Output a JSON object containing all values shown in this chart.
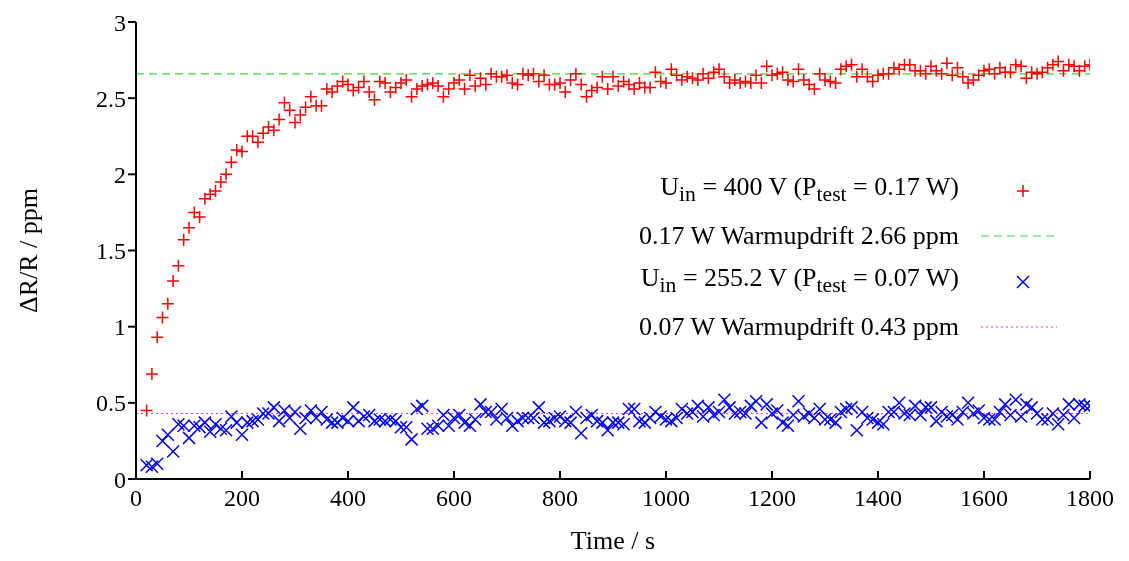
{
  "chart_data": {
    "type": "scatter",
    "xlabel": "Time / s",
    "ylabel": "ΔR/R / ppm",
    "x": [
      20,
      30,
      40,
      50,
      60,
      70,
      80,
      90,
      100,
      110,
      120,
      130,
      140,
      150,
      160,
      170,
      180,
      190,
      200,
      210,
      220,
      230,
      240,
      250,
      260,
      270,
      280,
      290,
      300,
      310,
      320,
      330,
      340,
      350,
      360,
      370,
      380,
      390,
      400,
      410,
      420,
      430,
      440,
      450,
      460,
      470,
      480,
      490,
      500,
      510,
      520,
      530,
      540,
      550,
      560,
      570,
      580,
      590,
      600,
      610,
      620,
      630,
      640,
      650,
      660,
      670,
      680,
      690,
      700,
      710,
      720,
      730,
      740,
      750,
      760,
      770,
      780,
      790,
      800,
      810,
      820,
      830,
      840,
      850,
      860,
      870,
      880,
      890,
      900,
      910,
      920,
      930,
      940,
      950,
      960,
      970,
      980,
      990,
      1000,
      1010,
      1020,
      1030,
      1040,
      1050,
      1060,
      1070,
      1080,
      1090,
      1100,
      1110,
      1120,
      1130,
      1140,
      1150,
      1160,
      1170,
      1180,
      1190,
      1200,
      1210,
      1220,
      1230,
      1240,
      1250,
      1260,
      1270,
      1280,
      1290,
      1300,
      1310,
      1320,
      1330,
      1340,
      1350,
      1360,
      1370,
      1380,
      1390,
      1400,
      1410,
      1420,
      1430,
      1440,
      1450,
      1460,
      1470,
      1480,
      1490,
      1500,
      1510,
      1520,
      1530,
      1540,
      1550,
      1560,
      1570,
      1580,
      1590,
      1600,
      1610,
      1620,
      1630,
      1640,
      1650,
      1660,
      1670,
      1680,
      1690,
      1700,
      1710,
      1720,
      1730,
      1740,
      1750,
      1760,
      1770,
      1780,
      1790,
      1800
    ],
    "series": [
      {
        "name": "U$_{in}$ = 400 V (P$_{test}$ = 0.17 W)",
        "color": "#ff0000",
        "marker": "plus",
        "values": [
          0.45,
          0.69,
          0.93,
          1.06,
          1.15,
          1.3,
          1.4,
          1.57,
          1.65,
          1.75,
          1.72,
          1.84,
          1.87,
          1.89,
          1.95,
          2.0,
          2.08,
          2.16,
          2.15,
          2.25,
          2.25,
          2.21,
          2.27,
          2.31,
          2.29,
          2.36,
          2.47,
          2.42,
          2.34,
          2.39,
          2.44,
          2.51,
          2.45,
          2.45,
          2.56,
          2.54,
          2.58,
          2.61,
          2.59,
          2.55,
          2.57,
          2.61,
          2.54,
          2.49,
          2.61,
          2.6,
          2.54,
          2.57,
          2.6,
          2.62,
          2.51,
          2.56,
          2.58,
          2.59,
          2.6,
          2.58,
          2.51,
          2.56,
          2.6,
          2.62,
          2.56,
          2.65,
          2.58,
          2.63,
          2.59,
          2.66,
          2.64,
          2.64,
          2.65,
          2.6,
          2.59,
          2.66,
          2.65,
          2.66,
          2.61,
          2.65,
          2.59,
          2.59,
          2.6,
          2.54,
          2.62,
          2.66,
          2.59,
          2.51,
          2.55,
          2.57,
          2.64,
          2.56,
          2.64,
          2.58,
          2.61,
          2.59,
          2.56,
          2.6,
          2.57,
          2.57,
          2.67,
          2.61,
          2.6,
          2.69,
          2.65,
          2.62,
          2.64,
          2.63,
          2.62,
          2.66,
          2.63,
          2.67,
          2.69,
          2.64,
          2.6,
          2.62,
          2.6,
          2.61,
          2.6,
          2.65,
          2.6,
          2.71,
          2.65,
          2.66,
          2.67,
          2.62,
          2.61,
          2.69,
          2.62,
          2.59,
          2.56,
          2.66,
          2.62,
          2.61,
          2.6,
          2.69,
          2.71,
          2.72,
          2.64,
          2.69,
          2.64,
          2.61,
          2.65,
          2.66,
          2.66,
          2.7,
          2.69,
          2.72,
          2.72,
          2.68,
          2.68,
          2.66,
          2.71,
          2.68,
          2.66,
          2.73,
          2.65,
          2.7,
          2.64,
          2.6,
          2.62,
          2.65,
          2.68,
          2.69,
          2.66,
          2.7,
          2.67,
          2.67,
          2.72,
          2.71,
          2.63,
          2.67,
          2.66,
          2.67,
          2.7,
          2.72,
          2.74,
          2.68,
          2.72,
          2.71,
          2.68,
          2.71,
          2.72
        ]
      },
      {
        "name": "U$_{in}$ = 255.2 V (P$_{test}$ = 0.07 W)",
        "color": "#0000ff",
        "marker": "cross",
        "values": [
          0.09,
          0.08,
          0.1,
          0.25,
          0.29,
          0.18,
          0.36,
          0.35,
          0.27,
          0.35,
          0.34,
          0.37,
          0.31,
          0.36,
          0.33,
          0.32,
          0.41,
          0.37,
          0.29,
          0.37,
          0.38,
          0.39,
          0.43,
          0.43,
          0.47,
          0.38,
          0.45,
          0.4,
          0.44,
          0.33,
          0.4,
          0.45,
          0.4,
          0.44,
          0.39,
          0.37,
          0.37,
          0.4,
          0.38,
          0.47,
          0.38,
          0.41,
          0.42,
          0.38,
          0.39,
          0.38,
          0.39,
          0.38,
          0.34,
          0.34,
          0.26,
          0.46,
          0.48,
          0.33,
          0.33,
          0.35,
          0.42,
          0.35,
          0.4,
          0.42,
          0.37,
          0.35,
          0.39,
          0.49,
          0.44,
          0.44,
          0.39,
          0.46,
          0.4,
          0.35,
          0.38,
          0.4,
          0.4,
          0.4,
          0.47,
          0.37,
          0.38,
          0.4,
          0.41,
          0.38,
          0.37,
          0.44,
          0.3,
          0.4,
          0.42,
          0.38,
          0.37,
          0.32,
          0.37,
          0.37,
          0.36,
          0.46,
          0.46,
          0.38,
          0.37,
          0.4,
          0.44,
          0.41,
          0.39,
          0.38,
          0.4,
          0.46,
          0.43,
          0.44,
          0.48,
          0.41,
          0.47,
          0.42,
          0.44,
          0.52,
          0.47,
          0.43,
          0.44,
          0.43,
          0.48,
          0.51,
          0.37,
          0.49,
          0.43,
          0.45,
          0.37,
          0.35,
          0.42,
          0.51,
          0.41,
          0.43,
          0.4,
          0.46,
          0.39,
          0.39,
          0.37,
          0.44,
          0.46,
          0.47,
          0.32,
          0.44,
          0.4,
          0.39,
          0.37,
          0.36,
          0.44,
          0.44,
          0.5,
          0.43,
          0.42,
          0.48,
          0.42,
          0.47,
          0.47,
          0.38,
          0.44,
          0.41,
          0.42,
          0.39,
          0.44,
          0.5,
          0.43,
          0.45,
          0.4,
          0.39,
          0.39,
          0.44,
          0.49,
          0.42,
          0.52,
          0.41,
          0.49,
          0.47,
          0.43,
          0.39,
          0.39,
          0.43,
          0.36,
          0.42,
          0.49,
          0.4,
          0.49,
          0.48,
          0.48
        ]
      }
    ],
    "ref_lines": [
      {
        "axis": "y",
        "value": 2.66,
        "label": "0.17 W Warmupdrift 2.66 ppm",
        "color": "#33dd33",
        "line_style": "dashed"
      },
      {
        "axis": "y",
        "value": 0.43,
        "label": "0.07 W Warmupdrift 0.43 ppm",
        "color": "#ee33ee",
        "line_style": "dotted"
      }
    ],
    "xlim": [
      0,
      1800
    ],
    "xticks": [
      0,
      200,
      400,
      600,
      800,
      1000,
      1200,
      1400,
      1600,
      1800
    ],
    "ylim": [
      0,
      3
    ],
    "yticks": [
      0,
      0.5,
      1,
      1.5,
      2,
      2.5,
      3
    ],
    "grid": false,
    "legend": "right"
  }
}
